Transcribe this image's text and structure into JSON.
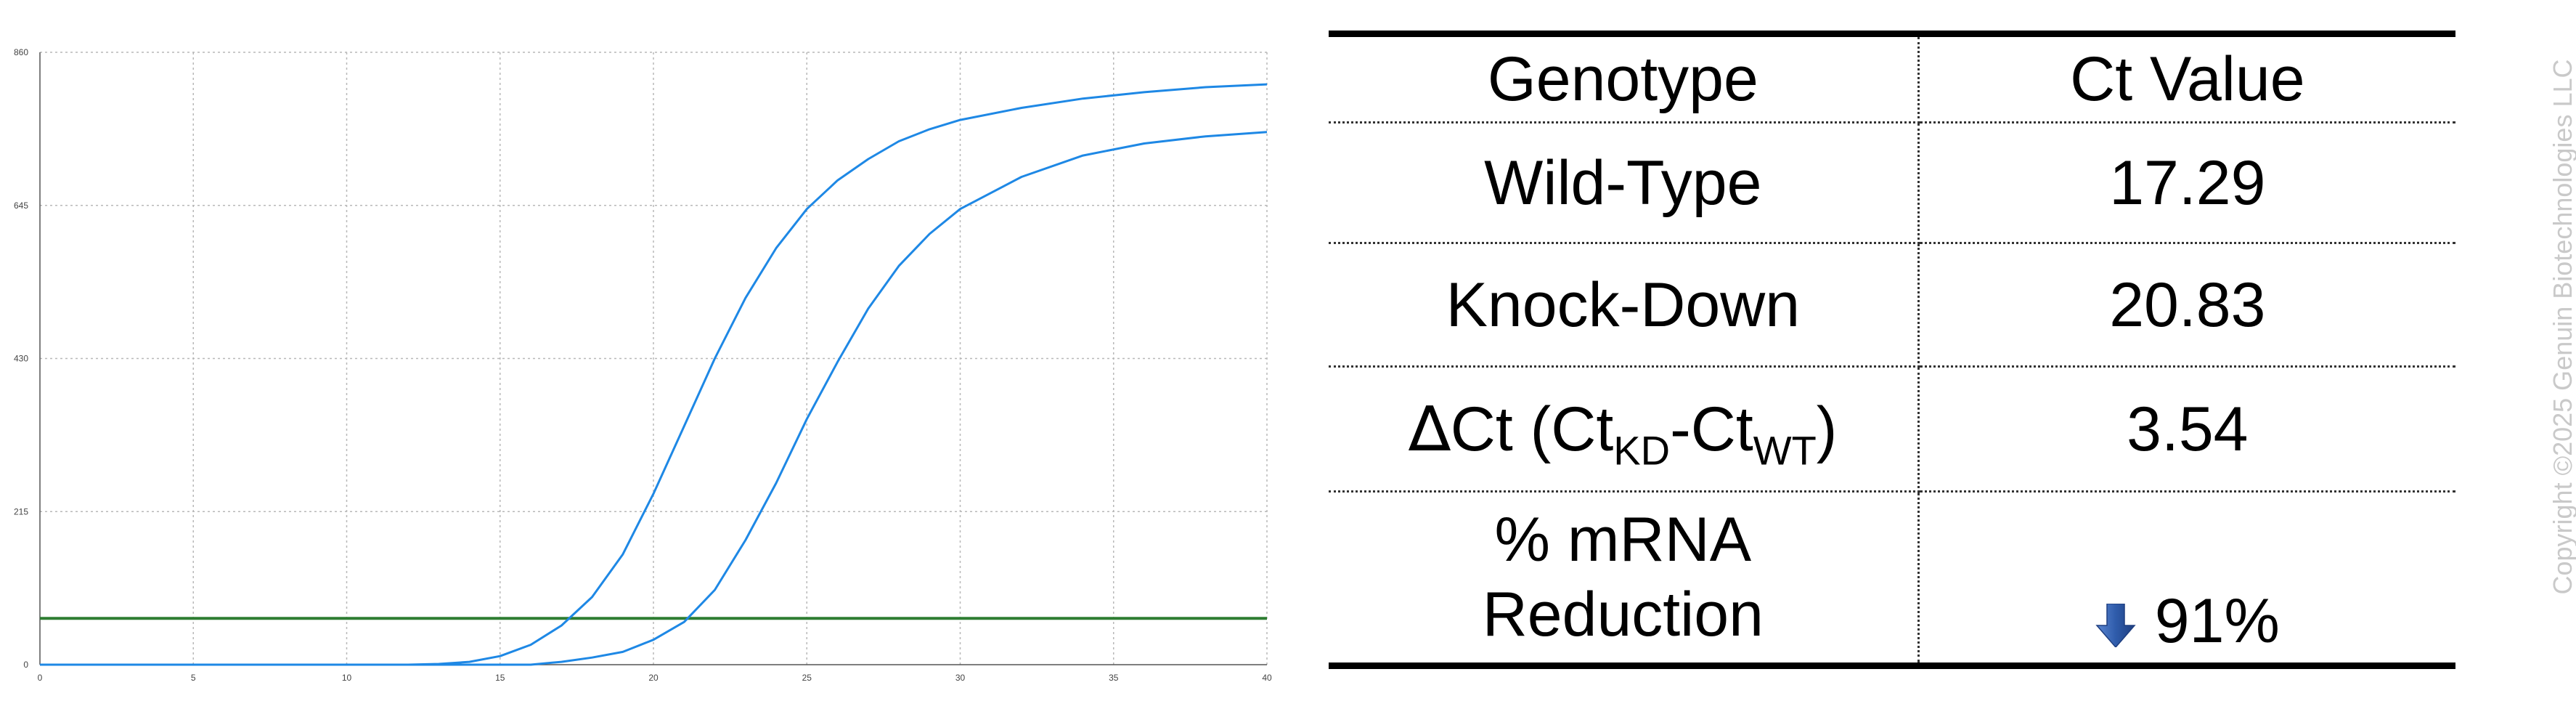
{
  "chart_data": {
    "type": "line",
    "title": "",
    "xlabel": "",
    "ylabel": "",
    "xlim": [
      0,
      40
    ],
    "ylim": [
      0,
      860
    ],
    "x_ticks": [
      0,
      5,
      10,
      15,
      20,
      25,
      30,
      35,
      40
    ],
    "y_ticks": [
      0,
      215,
      430,
      645,
      860
    ],
    "grid": true,
    "threshold": 65,
    "threshold_color": "#2e7d32",
    "series_color": "#1e88e5",
    "series": [
      {
        "x": [
          0,
          12,
          13,
          14,
          15,
          16,
          17,
          18,
          19,
          20,
          21,
          22,
          23,
          24,
          25,
          26,
          27,
          28,
          29,
          30,
          32,
          34,
          36,
          38,
          40
        ],
        "values": [
          0,
          0,
          1,
          4,
          12,
          28,
          55,
          95,
          155,
          240,
          335,
          430,
          515,
          585,
          640,
          680,
          710,
          735,
          752,
          765,
          782,
          795,
          804,
          811,
          815
        ]
      },
      {
        "x": [
          0,
          16,
          17,
          18,
          19,
          20,
          21,
          22,
          23,
          24,
          25,
          26,
          27,
          28,
          29,
          30,
          32,
          34,
          36,
          38,
          40
        ],
        "values": [
          0,
          0,
          4,
          10,
          18,
          35,
          60,
          105,
          175,
          255,
          345,
          425,
          500,
          560,
          605,
          640,
          685,
          715,
          732,
          742,
          748
        ]
      }
    ]
  },
  "table": {
    "header": {
      "genotype": "Genotype",
      "value": "Ct Value"
    },
    "rows": [
      {
        "genotype": "Wild-Type",
        "value": "17.29"
      },
      {
        "genotype": "Knock-Down",
        "value": "20.83"
      },
      {
        "genotype_delta": "∆",
        "genotype_main": "Ct (Ct",
        "genotype_sub1": "KD",
        "genotype_mid": "-Ct",
        "genotype_sub2": "WT",
        "genotype_end": ")",
        "value": "3.54"
      },
      {
        "genotype_line1": "% mRNA",
        "genotype_line2": "Reduction",
        "value": "91%",
        "icon": "down-arrow-icon"
      }
    ]
  },
  "copyright": "Copyright ©2025 Genuin Biotechnologies LLC",
  "colors": {
    "arrow": "#2f5cab",
    "copyright": "#c9c9c9"
  }
}
